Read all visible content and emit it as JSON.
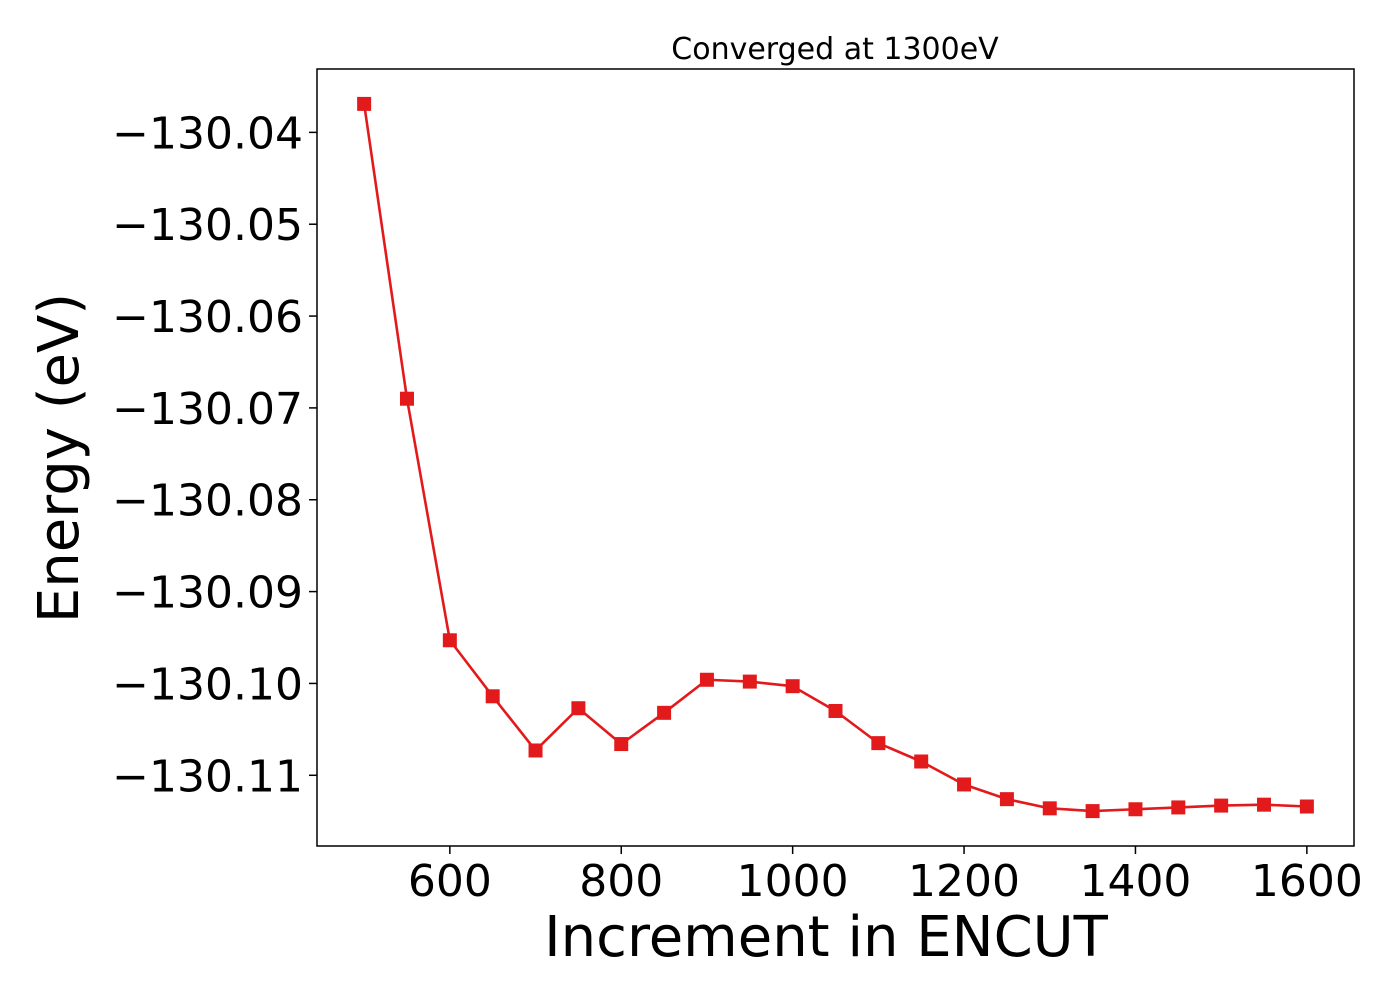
{
  "chart_data": {
    "type": "line",
    "title": "Converged at 1300eV",
    "xlabel": "Increment in ENCUT",
    "ylabel": "Energy (eV)",
    "xlim": [
      445,
      1655
    ],
    "ylim": [
      -130.1177,
      -130.0331
    ],
    "x_ticks": [
      600,
      800,
      1000,
      1200,
      1400,
      1600
    ],
    "x_tick_labels": [
      "600",
      "800",
      "1000",
      "1200",
      "1400",
      "1600"
    ],
    "y_ticks": [
      -130.04,
      -130.05,
      -130.06,
      -130.07,
      -130.08,
      -130.09,
      -130.1,
      -130.11
    ],
    "y_tick_labels": [
      "−130.04",
      "−130.05",
      "−130.06",
      "−130.07",
      "−130.08",
      "−130.09",
      "−130.10",
      "−130.11"
    ],
    "grid": false,
    "series": [
      {
        "color": "#e31a1c",
        "marker": "square",
        "x": [
          500,
          550,
          600,
          650,
          700,
          750,
          800,
          850,
          900,
          950,
          1000,
          1050,
          1100,
          1150,
          1200,
          1250,
          1300,
          1350,
          1400,
          1450,
          1500,
          1550,
          1600
        ],
        "y": [
          -130.0369,
          -130.069,
          -130.0953,
          -130.1014,
          -130.1073,
          -130.1027,
          -130.1066,
          -130.1032,
          -130.0996,
          -130.0998,
          -130.1003,
          -130.103,
          -130.1065,
          -130.1085,
          -130.111,
          -130.1126,
          -130.1136,
          -130.1139,
          -130.1137,
          -130.1135,
          -130.1133,
          -130.1132,
          -130.1134
        ]
      }
    ]
  }
}
